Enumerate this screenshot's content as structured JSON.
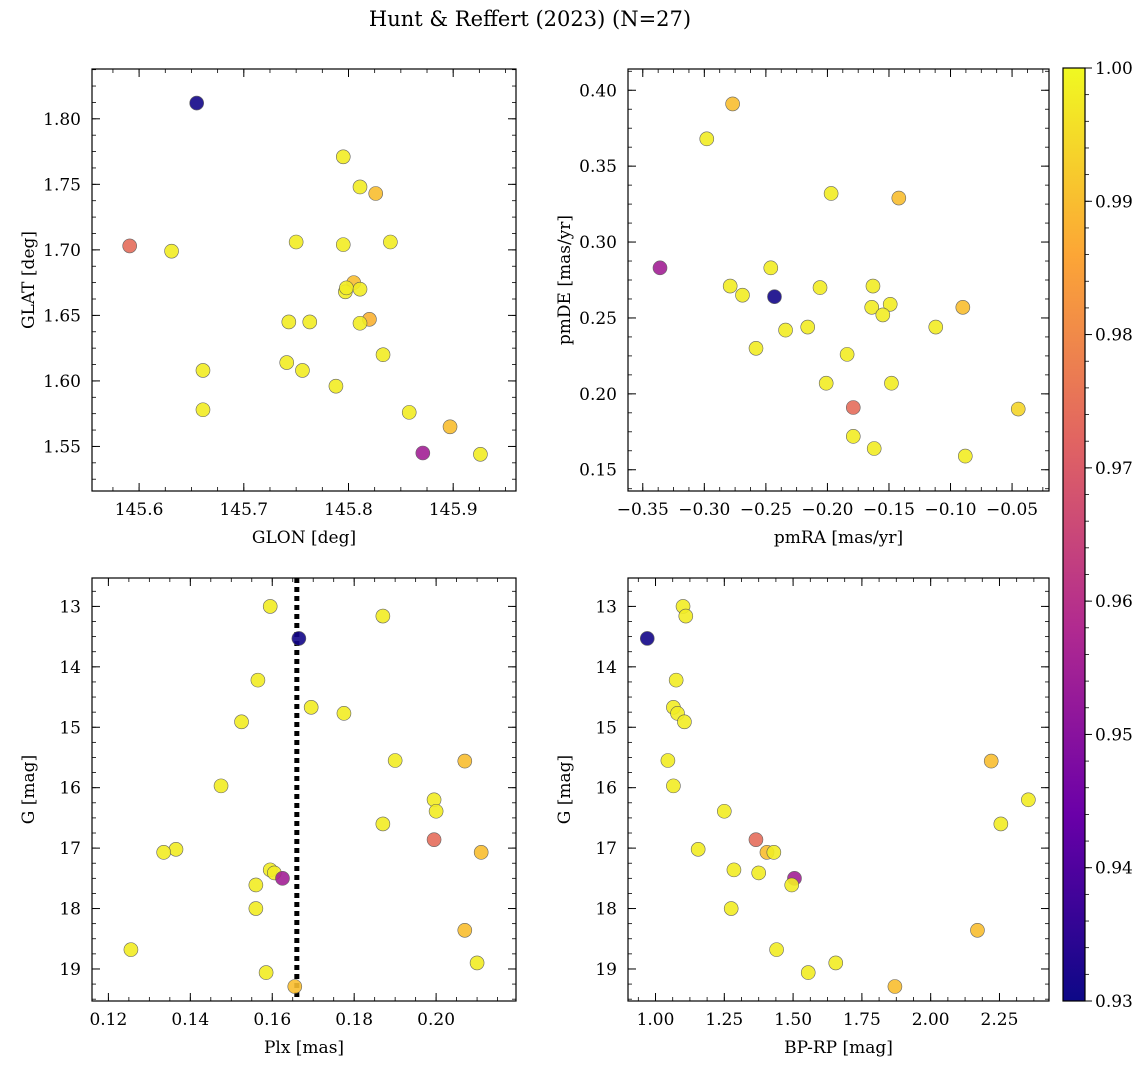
{
  "figure_title": "Hunt & Reffert (2023) (N=27)",
  "colorbar": {
    "min": 0.93,
    "max": 1.0,
    "ticks": [
      0.93,
      0.94,
      0.95,
      0.96,
      0.97,
      0.98,
      0.99,
      1.0
    ],
    "tick_labels": [
      "0.93",
      "0.94",
      "0.95",
      "0.96",
      "0.97",
      "0.98",
      "0.99",
      "1.00"
    ],
    "colormap": "plasma",
    "color_stops": [
      "#0d0887",
      "#6a00a8",
      "#b12a90",
      "#e16462",
      "#fca636",
      "#f0f921"
    ]
  },
  "chart_data": [
    {
      "type": "scatter",
      "name": "position",
      "xlabel": "GLON [deg]",
      "ylabel": "GLAT [deg]",
      "xlim": [
        145.555,
        145.96
      ],
      "ylim": [
        1.516,
        1.838
      ],
      "xticks": [
        145.6,
        145.7,
        145.8,
        145.9
      ],
      "xtick_labels": [
        "145.6",
        "145.7",
        "145.8",
        "145.9"
      ],
      "yticks": [
        1.55,
        1.6,
        1.65,
        1.7,
        1.75,
        1.8
      ],
      "ytick_labels": [
        "1.55",
        "1.60",
        "1.65",
        "1.70",
        "1.75",
        "1.80"
      ],
      "invert_y": false,
      "points": [
        {
          "x": 145.655,
          "y": 1.812,
          "c": 0.931
        },
        {
          "x": 145.591,
          "y": 1.703,
          "c": 0.974
        },
        {
          "x": 145.631,
          "y": 1.699,
          "c": 0.998
        },
        {
          "x": 145.661,
          "y": 1.608,
          "c": 0.998
        },
        {
          "x": 145.661,
          "y": 1.578,
          "c": 0.998
        },
        {
          "x": 145.795,
          "y": 1.771,
          "c": 0.998
        },
        {
          "x": 145.811,
          "y": 1.748,
          "c": 0.998
        },
        {
          "x": 145.826,
          "y": 1.743,
          "c": 0.99
        },
        {
          "x": 145.75,
          "y": 1.706,
          "c": 0.998
        },
        {
          "x": 145.795,
          "y": 1.704,
          "c": 0.998
        },
        {
          "x": 145.84,
          "y": 1.706,
          "c": 0.998
        },
        {
          "x": 145.805,
          "y": 1.675,
          "c": 0.99
        },
        {
          "x": 145.797,
          "y": 1.668,
          "c": 0.998
        },
        {
          "x": 145.798,
          "y": 1.671,
          "c": 0.998
        },
        {
          "x": 145.811,
          "y": 1.67,
          "c": 0.998
        },
        {
          "x": 145.743,
          "y": 1.645,
          "c": 0.998
        },
        {
          "x": 145.763,
          "y": 1.645,
          "c": 0.998
        },
        {
          "x": 145.82,
          "y": 1.647,
          "c": 0.988
        },
        {
          "x": 145.811,
          "y": 1.644,
          "c": 0.998
        },
        {
          "x": 145.741,
          "y": 1.614,
          "c": 0.998
        },
        {
          "x": 145.756,
          "y": 1.608,
          "c": 0.998
        },
        {
          "x": 145.833,
          "y": 1.62,
          "c": 0.998
        },
        {
          "x": 145.788,
          "y": 1.596,
          "c": 0.998
        },
        {
          "x": 145.858,
          "y": 1.576,
          "c": 0.998
        },
        {
          "x": 145.897,
          "y": 1.565,
          "c": 0.99
        },
        {
          "x": 145.871,
          "y": 1.545,
          "c": 0.955
        },
        {
          "x": 145.926,
          "y": 1.544,
          "c": 0.998
        }
      ]
    },
    {
      "type": "scatter",
      "name": "proper-motion",
      "xlabel": "pmRA [mas/yr]",
      "ylabel": "pmDE [mas/yr]",
      "xlim": [
        -0.362,
        -0.02
      ],
      "ylim": [
        0.136,
        0.414
      ],
      "xticks": [
        -0.35,
        -0.3,
        -0.25,
        -0.2,
        -0.15,
        -0.1,
        -0.05
      ],
      "xtick_labels": [
        "−0.35",
        "−0.30",
        "−0.25",
        "−0.20",
        "−0.15",
        "−0.10",
        "−0.05"
      ],
      "yticks": [
        0.15,
        0.2,
        0.25,
        0.3,
        0.35,
        0.4
      ],
      "ytick_labels": [
        "0.15",
        "0.20",
        "0.25",
        "0.30",
        "0.35",
        "0.40"
      ],
      "invert_y": false,
      "points": [
        {
          "x": -0.277,
          "y": 0.391,
          "c": 0.99
        },
        {
          "x": -0.298,
          "y": 0.368,
          "c": 0.998
        },
        {
          "x": -0.197,
          "y": 0.332,
          "c": 0.998
        },
        {
          "x": -0.142,
          "y": 0.329,
          "c": 0.99
        },
        {
          "x": -0.336,
          "y": 0.283,
          "c": 0.955
        },
        {
          "x": -0.246,
          "y": 0.283,
          "c": 0.998
        },
        {
          "x": -0.279,
          "y": 0.271,
          "c": 0.998
        },
        {
          "x": -0.269,
          "y": 0.265,
          "c": 0.998
        },
        {
          "x": -0.243,
          "y": 0.264,
          "c": 0.931
        },
        {
          "x": -0.206,
          "y": 0.27,
          "c": 0.998
        },
        {
          "x": -0.163,
          "y": 0.271,
          "c": 0.998
        },
        {
          "x": -0.164,
          "y": 0.257,
          "c": 0.998
        },
        {
          "x": -0.149,
          "y": 0.259,
          "c": 0.998
        },
        {
          "x": -0.155,
          "y": 0.252,
          "c": 0.998
        },
        {
          "x": -0.09,
          "y": 0.257,
          "c": 0.99
        },
        {
          "x": -0.216,
          "y": 0.244,
          "c": 0.998
        },
        {
          "x": -0.234,
          "y": 0.242,
          "c": 0.998
        },
        {
          "x": -0.112,
          "y": 0.244,
          "c": 0.998
        },
        {
          "x": -0.258,
          "y": 0.23,
          "c": 0.998
        },
        {
          "x": -0.184,
          "y": 0.226,
          "c": 0.998
        },
        {
          "x": -0.201,
          "y": 0.207,
          "c": 0.998
        },
        {
          "x": -0.148,
          "y": 0.207,
          "c": 0.998
        },
        {
          "x": -0.179,
          "y": 0.191,
          "c": 0.974
        },
        {
          "x": -0.045,
          "y": 0.19,
          "c": 0.994
        },
        {
          "x": -0.179,
          "y": 0.172,
          "c": 0.998
        },
        {
          "x": -0.162,
          "y": 0.164,
          "c": 0.998
        },
        {
          "x": -0.088,
          "y": 0.159,
          "c": 0.998
        }
      ]
    },
    {
      "type": "scatter",
      "name": "parallax-magnitude",
      "xlabel": "Plx [mas]",
      "ylabel": "G [mag]",
      "xlim": [
        0.116,
        0.2195
      ],
      "ylim": [
        12.53,
        19.53
      ],
      "xticks": [
        0.12,
        0.14,
        0.16,
        0.18,
        0.2
      ],
      "xtick_labels": [
        "0.12",
        "0.14",
        "0.16",
        "0.18",
        "0.20"
      ],
      "yticks": [
        13,
        14,
        15,
        16,
        17,
        18,
        19
      ],
      "ytick_labels": [
        "13",
        "14",
        "15",
        "16",
        "17",
        "18",
        "19"
      ],
      "invert_y": true,
      "vline": {
        "x": 0.166,
        "style": "dotted"
      },
      "points": [
        {
          "x": 0.1595,
          "y": 13.0,
          "c": 0.998
        },
        {
          "x": 0.187,
          "y": 13.16,
          "c": 0.998
        },
        {
          "x": 0.1665,
          "y": 13.53,
          "c": 0.931
        },
        {
          "x": 0.1565,
          "y": 14.22,
          "c": 0.998
        },
        {
          "x": 0.1695,
          "y": 14.67,
          "c": 0.998
        },
        {
          "x": 0.1775,
          "y": 14.77,
          "c": 0.998
        },
        {
          "x": 0.1525,
          "y": 14.91,
          "c": 0.998
        },
        {
          "x": 0.19,
          "y": 15.55,
          "c": 0.998
        },
        {
          "x": 0.207,
          "y": 15.56,
          "c": 0.99
        },
        {
          "x": 0.1475,
          "y": 15.97,
          "c": 0.998
        },
        {
          "x": 0.1995,
          "y": 16.2,
          "c": 0.998
        },
        {
          "x": 0.2,
          "y": 16.39,
          "c": 0.998
        },
        {
          "x": 0.187,
          "y": 16.6,
          "c": 0.998
        },
        {
          "x": 0.1995,
          "y": 16.86,
          "c": 0.974
        },
        {
          "x": 0.1365,
          "y": 17.02,
          "c": 0.998
        },
        {
          "x": 0.1335,
          "y": 17.07,
          "c": 0.998
        },
        {
          "x": 0.211,
          "y": 17.07,
          "c": 0.99
        },
        {
          "x": 0.1595,
          "y": 17.36,
          "c": 0.998
        },
        {
          "x": 0.1605,
          "y": 17.41,
          "c": 0.998
        },
        {
          "x": 0.1625,
          "y": 17.5,
          "c": 0.955
        },
        {
          "x": 0.156,
          "y": 17.61,
          "c": 0.998
        },
        {
          "x": 0.156,
          "y": 18.0,
          "c": 0.998
        },
        {
          "x": 0.207,
          "y": 18.36,
          "c": 0.99
        },
        {
          "x": 0.1255,
          "y": 18.68,
          "c": 0.998
        },
        {
          "x": 0.21,
          "y": 18.9,
          "c": 0.998
        },
        {
          "x": 0.1585,
          "y": 19.06,
          "c": 0.998
        },
        {
          "x": 0.1655,
          "y": 19.29,
          "c": 0.99
        }
      ]
    },
    {
      "type": "scatter",
      "name": "colour-magnitude",
      "xlabel": "BP-RP [mag]",
      "ylabel": "G [mag]",
      "xlim": [
        0.9,
        2.43
      ],
      "ylim": [
        12.53,
        19.53
      ],
      "xticks": [
        1.0,
        1.25,
        1.5,
        1.75,
        2.0,
        2.25
      ],
      "xtick_labels": [
        "1.00",
        "1.25",
        "1.50",
        "1.75",
        "2.00",
        "2.25"
      ],
      "yticks": [
        13,
        14,
        15,
        16,
        17,
        18,
        19
      ],
      "ytick_labels": [
        "13",
        "14",
        "15",
        "16",
        "17",
        "18",
        "19"
      ],
      "invert_y": true,
      "points": [
        {
          "x": 1.1,
          "y": 13.0,
          "c": 0.998
        },
        {
          "x": 1.11,
          "y": 13.16,
          "c": 0.998
        },
        {
          "x": 0.97,
          "y": 13.53,
          "c": 0.931
        },
        {
          "x": 1.075,
          "y": 14.22,
          "c": 0.998
        },
        {
          "x": 1.065,
          "y": 14.67,
          "c": 0.998
        },
        {
          "x": 1.08,
          "y": 14.77,
          "c": 0.998
        },
        {
          "x": 1.105,
          "y": 14.91,
          "c": 0.998
        },
        {
          "x": 1.045,
          "y": 15.55,
          "c": 0.998
        },
        {
          "x": 2.22,
          "y": 15.56,
          "c": 0.99
        },
        {
          "x": 1.065,
          "y": 15.97,
          "c": 0.998
        },
        {
          "x": 2.355,
          "y": 16.2,
          "c": 0.998
        },
        {
          "x": 1.25,
          "y": 16.39,
          "c": 0.998
        },
        {
          "x": 2.255,
          "y": 16.6,
          "c": 0.998
        },
        {
          "x": 1.365,
          "y": 16.86,
          "c": 0.974
        },
        {
          "x": 1.155,
          "y": 17.02,
          "c": 0.998
        },
        {
          "x": 1.405,
          "y": 17.07,
          "c": 0.99
        },
        {
          "x": 1.43,
          "y": 17.07,
          "c": 0.998
        },
        {
          "x": 1.285,
          "y": 17.36,
          "c": 0.998
        },
        {
          "x": 1.375,
          "y": 17.41,
          "c": 0.998
        },
        {
          "x": 1.505,
          "y": 17.5,
          "c": 0.955
        },
        {
          "x": 1.495,
          "y": 17.61,
          "c": 0.998
        },
        {
          "x": 1.275,
          "y": 18.0,
          "c": 0.998
        },
        {
          "x": 2.17,
          "y": 18.36,
          "c": 0.99
        },
        {
          "x": 1.44,
          "y": 18.68,
          "c": 0.998
        },
        {
          "x": 1.655,
          "y": 18.9,
          "c": 0.998
        },
        {
          "x": 1.555,
          "y": 19.06,
          "c": 0.998
        },
        {
          "x": 1.87,
          "y": 19.29,
          "c": 0.99
        }
      ]
    }
  ]
}
